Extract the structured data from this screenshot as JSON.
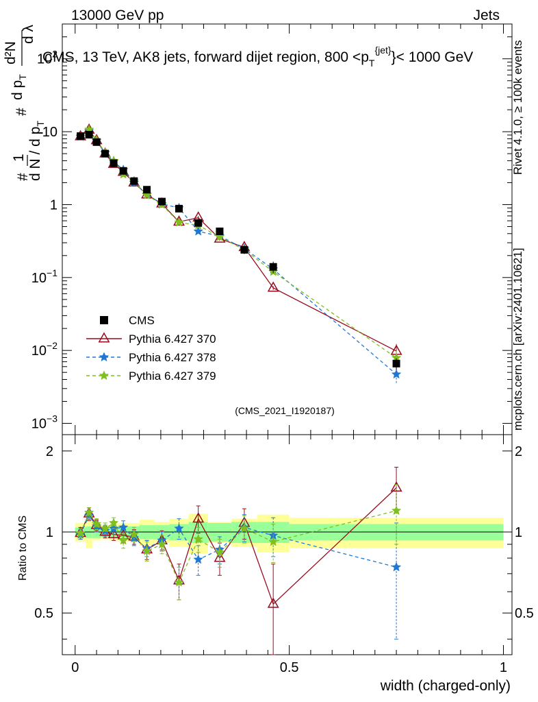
{
  "header": {
    "left": "13000 GeV pp",
    "right": "Jets"
  },
  "plot_title": {
    "prefix": "CMS, 13 TeV, AK8 jets, forward dijet region, 800 <p",
    "sub": "T",
    "sup": "{jet}",
    "suffix": "}< 1000 GeV"
  },
  "side_labels": {
    "rivet": "Rivet 4.1.0, ≥ 100k events",
    "mcplots": "mcplots.cern.ch [arXiv:2401.10621]"
  },
  "analysis_id": "(CMS_2021_I1920187)",
  "ylabel_main": {
    "hash": "#",
    "one": "1",
    "dN": "d N / d p",
    "dN_sub": "T",
    "d2N": "d²N",
    "hash2": "#",
    "dpt": "d p",
    "dpt_sub": "T",
    "dl": "d λ"
  },
  "ylabel_ratio": "Ratio to CMS",
  "xlabel": "width (charged-only)",
  "colors": {
    "cms": "#000000",
    "p370": "#9a0a1e",
    "p378": "#1f77d4",
    "p379": "#7fbf1f",
    "band_inner": "#99ff99",
    "band_outer": "#ffff99"
  },
  "chart_data": {
    "type": "scatter",
    "x": [
      0.0125,
      0.0325,
      0.05,
      0.07,
      0.09,
      0.1125,
      0.1375,
      0.1675,
      0.2025,
      0.2425,
      0.2875,
      0.3375,
      0.395,
      0.4625,
      0.75
    ],
    "xlim": [
      -0.03,
      1.02
    ],
    "ylim_main": [
      0.0007,
      300
    ],
    "ylim_ratio": [
      0.35,
      2.3
    ],
    "x_ticks": [
      0,
      0.5,
      1
    ],
    "x_tick_labels": [
      "0",
      "0.5",
      "1"
    ],
    "y_ticks_main": [
      0.001,
      0.01,
      0.1,
      1,
      10,
      100
    ],
    "y_tick_labels_main": [
      {
        "base": "10",
        "exp": "−3"
      },
      {
        "base": "10",
        "exp": "−2"
      },
      {
        "base": "10",
        "exp": "−1"
      },
      {
        "base": "1",
        "exp": ""
      },
      {
        "base": "10",
        "exp": ""
      },
      {
        "base": "10",
        "exp": "2"
      }
    ],
    "y_ticks_ratio": [
      0.5,
      1,
      2
    ],
    "y_tick_labels_ratio": [
      "0.5",
      "1",
      "2"
    ],
    "bins": [
      [
        0,
        0.025
      ],
      [
        0.025,
        0.04
      ],
      [
        0.04,
        0.06
      ],
      [
        0.06,
        0.08
      ],
      [
        0.08,
        0.1
      ],
      [
        0.1,
        0.125
      ],
      [
        0.125,
        0.15
      ],
      [
        0.15,
        0.185
      ],
      [
        0.185,
        0.22
      ],
      [
        0.22,
        0.265
      ],
      [
        0.265,
        0.31
      ],
      [
        0.31,
        0.365
      ],
      [
        0.365,
        0.425
      ],
      [
        0.425,
        0.5
      ],
      [
        0.5,
        1.0
      ]
    ],
    "band_inner": [
      0.04,
      0.05,
      0.05,
      0.04,
      0.04,
      0.05,
      0.05,
      0.06,
      0.06,
      0.07,
      0.09,
      0.08,
      0.09,
      0.09,
      0.07
    ],
    "band_outer": [
      0.08,
      0.13,
      0.07,
      0.06,
      0.07,
      0.08,
      0.08,
      0.11,
      0.09,
      0.12,
      0.17,
      0.09,
      0.12,
      0.16,
      0.13
    ],
    "series": [
      {
        "name": "CMS",
        "style": "cms",
        "values": [
          8.7,
          9.1,
          7.2,
          5.0,
          3.7,
          2.9,
          2.1,
          1.6,
          1.1,
          0.88,
          0.56,
          0.43,
          0.24,
          0.14,
          0.0066
        ],
        "err": [
          0.5,
          0.5,
          0.4,
          0.3,
          0.2,
          0.15,
          0.12,
          0.1,
          0.08,
          0.06,
          0.05,
          0.04,
          0.03,
          0.025,
          0.0012
        ]
      },
      {
        "name": "Pythia 6.427 370",
        "style": "p370",
        "values": [
          8.6,
          10.6,
          7.6,
          5.0,
          3.6,
          2.8,
          2.0,
          1.37,
          1.03,
          0.58,
          0.66,
          0.34,
          0.26,
          0.072,
          0.0098
        ],
        "ratio": [
          0.99,
          1.17,
          1.06,
          1.0,
          0.98,
          0.97,
          0.96,
          0.86,
          0.93,
          0.66,
          1.12,
          0.8,
          1.08,
          0.54,
          1.46
        ],
        "ratio_err": [
          0.05,
          0.06,
          0.05,
          0.05,
          0.05,
          0.06,
          0.06,
          0.07,
          0.08,
          0.1,
          0.13,
          0.11,
          0.14,
          0.22,
          0.28
        ]
      },
      {
        "name": "Pythia 6.427 378",
        "style": "p378",
        "values": [
          8.5,
          10.3,
          7.5,
          5.1,
          3.9,
          3.0,
          2.0,
          1.38,
          1.02,
          0.9,
          0.43,
          0.37,
          0.25,
          0.13,
          0.0047
        ],
        "ratio": [
          0.98,
          1.15,
          1.05,
          1.01,
          1.03,
          1.04,
          0.95,
          0.87,
          0.93,
          1.03,
          0.79,
          0.86,
          1.04,
          0.97,
          0.74
        ],
        "ratio_err": [
          0.04,
          0.05,
          0.05,
          0.05,
          0.05,
          0.06,
          0.06,
          0.06,
          0.07,
          0.09,
          0.1,
          0.1,
          0.12,
          0.16,
          0.34
        ]
      },
      {
        "name": "Pythia 6.427 379",
        "style": "p379",
        "values": [
          8.6,
          10.7,
          7.7,
          5.2,
          4.0,
          2.6,
          2.1,
          1.35,
          1.0,
          0.57,
          0.52,
          0.36,
          0.24,
          0.12,
          0.0079
        ],
        "ratio": [
          0.99,
          1.18,
          1.07,
          1.03,
          1.08,
          0.93,
          0.98,
          0.85,
          0.9,
          0.65,
          0.94,
          0.84,
          1.03,
          0.92,
          1.2
        ],
        "ratio_err": [
          0.04,
          0.05,
          0.05,
          0.05,
          0.05,
          0.06,
          0.06,
          0.07,
          0.07,
          0.09,
          0.1,
          0.1,
          0.12,
          0.15,
          0.3
        ]
      }
    ]
  }
}
